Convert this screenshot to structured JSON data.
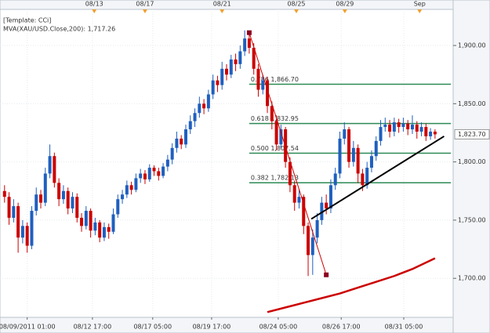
{
  "chart_data": {
    "type": "candlestick",
    "annotations": [
      "[Template: CCi]",
      "MVA(XAU/USD.Close,200): 1,717.26"
    ],
    "annotation_colors": [
      "#000000",
      "#cc0000"
    ],
    "up_color": "#1f5fbf",
    "down_color": "#cc0000",
    "xlim": [
      0,
      100
    ],
    "ylim": [
      1666.5,
      1931
    ],
    "grid": true,
    "yticks": [
      {
        "value": 1700,
        "label": "1,700.00"
      },
      {
        "value": 1750,
        "label": "1,750.00"
      },
      {
        "value": 1800,
        "label": "1,800.00"
      },
      {
        "value": 1850,
        "label": "1,850.00"
      },
      {
        "value": 1900,
        "label": "1,900.00"
      }
    ],
    "xticks": [
      {
        "value": 6,
        "label": "08/09/2011 01:00"
      },
      {
        "value": 20.4,
        "label": "08/12 17:00"
      },
      {
        "value": 33.7,
        "label": "08/17 05:00"
      },
      {
        "value": 46.7,
        "label": "08/19 17:00"
      },
      {
        "value": 61.4,
        "label": "08/24 05:00"
      },
      {
        "value": 75.3,
        "label": "08/26 17:00"
      },
      {
        "value": 89.1,
        "label": "08/31 05:00"
      }
    ],
    "top_ticks": [
      {
        "value": 20.8,
        "label": "08/13"
      },
      {
        "value": 32,
        "label": "08/17"
      },
      {
        "value": 49,
        "label": "08/21"
      },
      {
        "value": 65.4,
        "label": "08/25"
      },
      {
        "value": 76.1,
        "label": "08/29"
      },
      {
        "value": 92.6,
        "label": "Sep"
      }
    ],
    "x": [
      1,
      2,
      3,
      4,
      5,
      6,
      7,
      8,
      9,
      10,
      11,
      12,
      13,
      14,
      15,
      16,
      17,
      18,
      19,
      20,
      21,
      22,
      23,
      24,
      25,
      26,
      27,
      28,
      29,
      30,
      31,
      32,
      33,
      34,
      35,
      36,
      37,
      38,
      39,
      40,
      41,
      42,
      43,
      44,
      45,
      46,
      47,
      48,
      49,
      50,
      51,
      52,
      53,
      54,
      55,
      56,
      57,
      58,
      59,
      60,
      61,
      62,
      63,
      64,
      65,
      66,
      67,
      68,
      69,
      70,
      71,
      72,
      73,
      74,
      75,
      76,
      77,
      78,
      79,
      80,
      81,
      82,
      83,
      84,
      85,
      86,
      87,
      88,
      89,
      90,
      91,
      92,
      93,
      94,
      95,
      96
    ],
    "open": [
      1775,
      1770,
      1752,
      1762,
      1735,
      1745,
      1728,
      1758,
      1772,
      1765,
      1790,
      1805,
      1782,
      1768,
      1775,
      1760,
      1770,
      1752,
      1745,
      1758,
      1741,
      1748,
      1735,
      1744,
      1740,
      1755,
      1768,
      1772,
      1780,
      1776,
      1786,
      1790,
      1785,
      1795,
      1792,
      1788,
      1796,
      1802,
      1812,
      1820,
      1815,
      1828,
      1835,
      1842,
      1850,
      1846,
      1858,
      1870,
      1866,
      1880,
      1875,
      1888,
      1884,
      1895,
      1906,
      1898,
      1880,
      1862,
      1870,
      1848,
      1835,
      1815,
      1828,
      1800,
      1780,
      1765,
      1770,
      1745,
      1720,
      1735,
      1750,
      1765,
      1760,
      1780,
      1790,
      1820,
      1828,
      1800,
      1812,
      1790,
      1780,
      1795,
      1805,
      1818,
      1830,
      1832,
      1826,
      1834,
      1830,
      1833,
      1828,
      1832,
      1826,
      1830,
      1822,
      1826
    ],
    "high": [
      1780,
      1774,
      1768,
      1765,
      1750,
      1748,
      1762,
      1778,
      1776,
      1795,
      1815,
      1808,
      1786,
      1780,
      1778,
      1774,
      1773,
      1756,
      1762,
      1760,
      1752,
      1750,
      1748,
      1747,
      1760,
      1772,
      1776,
      1784,
      1783,
      1790,
      1794,
      1793,
      1798,
      1797,
      1795,
      1799,
      1806,
      1816,
      1826,
      1823,
      1832,
      1840,
      1846,
      1856,
      1854,
      1862,
      1875,
      1874,
      1886,
      1884,
      1892,
      1893,
      1900,
      1913,
      1910,
      1902,
      1884,
      1875,
      1873,
      1852,
      1840,
      1832,
      1830,
      1804,
      1784,
      1776,
      1772,
      1748,
      1742,
      1756,
      1770,
      1772,
      1785,
      1795,
      1826,
      1834,
      1830,
      1818,
      1815,
      1794,
      1800,
      1810,
      1822,
      1836,
      1838,
      1836,
      1838,
      1837,
      1838,
      1836,
      1840,
      1835,
      1834,
      1833,
      1829,
      1828
    ],
    "low": [
      1765,
      1746,
      1748,
      1722,
      1730,
      1722,
      1725,
      1754,
      1760,
      1762,
      1786,
      1778,
      1762,
      1764,
      1755,
      1756,
      1748,
      1740,
      1742,
      1735,
      1737,
      1731,
      1732,
      1734,
      1738,
      1752,
      1764,
      1769,
      1772,
      1774,
      1782,
      1781,
      1783,
      1788,
      1784,
      1786,
      1792,
      1798,
      1808,
      1811,
      1812,
      1824,
      1830,
      1838,
      1841,
      1843,
      1854,
      1860,
      1862,
      1870,
      1872,
      1878,
      1880,
      1891,
      1893,
      1875,
      1856,
      1858,
      1842,
      1828,
      1810,
      1812,
      1795,
      1774,
      1758,
      1760,
      1738,
      1702,
      1703,
      1730,
      1746,
      1755,
      1756,
      1776,
      1786,
      1815,
      1795,
      1796,
      1782,
      1775,
      1777,
      1791,
      1801,
      1814,
      1826,
      1821,
      1822,
      1825,
      1826,
      1823,
      1824,
      1820,
      1822,
      1818,
      1819,
      1820
    ],
    "close": [
      1770,
      1752,
      1762,
      1735,
      1745,
      1728,
      1758,
      1772,
      1765,
      1790,
      1805,
      1782,
      1768,
      1775,
      1760,
      1770,
      1752,
      1745,
      1758,
      1741,
      1748,
      1735,
      1744,
      1740,
      1755,
      1768,
      1772,
      1780,
      1776,
      1786,
      1790,
      1785,
      1795,
      1792,
      1788,
      1796,
      1802,
      1812,
      1820,
      1815,
      1828,
      1835,
      1842,
      1850,
      1846,
      1858,
      1870,
      1866,
      1880,
      1875,
      1888,
      1884,
      1895,
      1906,
      1898,
      1880,
      1862,
      1870,
      1848,
      1835,
      1815,
      1828,
      1800,
      1780,
      1765,
      1770,
      1745,
      1720,
      1735,
      1750,
      1765,
      1760,
      1780,
      1790,
      1820,
      1828,
      1800,
      1812,
      1790,
      1780,
      1795,
      1805,
      1818,
      1830,
      1832,
      1826,
      1834,
      1830,
      1833,
      1828,
      1832,
      1826,
      1830,
      1822,
      1826,
      1823.7
    ],
    "last_price": {
      "value": 1823.7,
      "label": "1,823.70"
    },
    "fib_color": "#2e8b57",
    "fib_xlim": [
      55,
      99.5
    ],
    "fib_levels": [
      {
        "value": 1866.7,
        "label": "0.786 1,866.70"
      },
      {
        "value": 1832.95,
        "label": "0.618 1,832.95"
      },
      {
        "value": 1807.54,
        "label": "0.500 1,807.54"
      },
      {
        "value": 1782.13,
        "label": "0.382 1,782.13"
      }
    ],
    "trend_lines": [
      {
        "color": "#cc0000",
        "x": [
          55,
          72
        ],
        "y": [
          1911,
          1703
        ]
      },
      {
        "color": "#000000",
        "x": [
          68.7,
          98
        ],
        "y": [
          1751,
          1822
        ]
      }
    ],
    "ma": {
      "color": "#cc0000",
      "x": [
        59,
        63,
        67,
        71,
        75,
        79,
        83,
        87,
        91,
        96
      ],
      "values": [
        1671,
        1675,
        1679,
        1683,
        1687,
        1692,
        1697,
        1702,
        1708,
        1717.26
      ]
    }
  }
}
